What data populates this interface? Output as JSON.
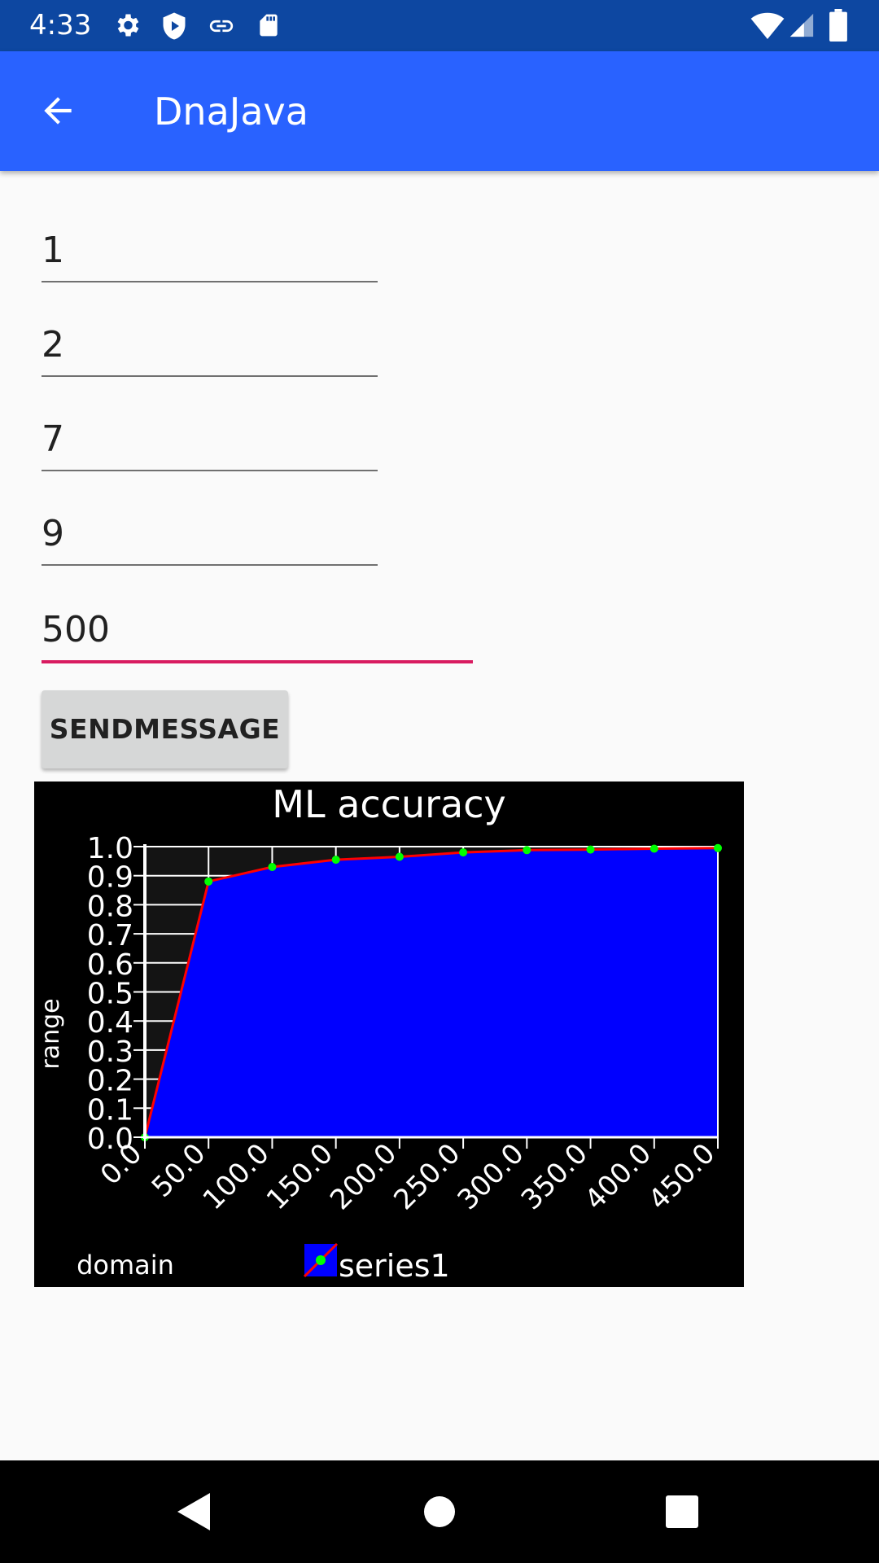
{
  "status_bar": {
    "time": "4:33",
    "icons": [
      "gear-icon",
      "shield-play-icon",
      "link-icon",
      "sd-card-icon",
      "wifi-icon",
      "signal-icon",
      "battery-icon"
    ]
  },
  "app_bar": {
    "title": "DnaJava",
    "back_icon": "arrow-back-icon",
    "color": "#2962ff"
  },
  "fields": [
    {
      "value": "1"
    },
    {
      "value": "2"
    },
    {
      "value": "7"
    },
    {
      "value": "9"
    },
    {
      "value": "500",
      "focused": true
    }
  ],
  "send_button": {
    "label": "SENDMESSAGE"
  },
  "chart_data": {
    "type": "area",
    "title": "ML accuracy",
    "xlabel": "domain",
    "ylabel": "range",
    "x": [
      0,
      50,
      100,
      150,
      200,
      250,
      300,
      350,
      400,
      450
    ],
    "series": [
      {
        "name": "series1",
        "values": [
          0.0,
          0.88,
          0.93,
          0.955,
          0.965,
          0.98,
          0.988,
          0.99,
          0.993,
          0.995
        ],
        "fill_color": "#0000ff",
        "line_color": "#ff0000",
        "point_color": "#00ff00"
      }
    ],
    "x_ticks": [
      "0.0",
      "50.0",
      "100.0",
      "150.0",
      "200.0",
      "250.0",
      "300.0",
      "350.0",
      "400.0",
      "450.0"
    ],
    "y_ticks": [
      "0.0",
      "0.1",
      "0.2",
      "0.3",
      "0.4",
      "0.5",
      "0.6",
      "0.7",
      "0.8",
      "0.9",
      "1.0"
    ],
    "xlim": [
      0,
      450
    ],
    "ylim": [
      0,
      1.0
    ],
    "grid": true,
    "legend": "bottom",
    "background": "#000000",
    "plot_background": "#141414"
  },
  "nav_bar": {
    "icons": [
      "back-triangle-icon",
      "home-circle-icon",
      "recents-square-icon"
    ]
  }
}
